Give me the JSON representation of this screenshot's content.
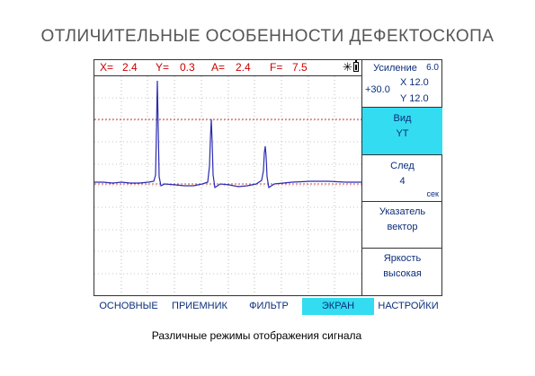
{
  "page_title": "ОТЛИЧИТЕЛЬНЫЕ ОСОБЕННОСТИ ДЕФЕКТОСКОПА",
  "readouts": {
    "x": "X=",
    "x_val": "2.4",
    "y": "Y=",
    "y_val": "0.3",
    "a": "A=",
    "a_val": "2.4",
    "f": "F=",
    "f_val": "7.5"
  },
  "icons": {
    "brightness": "sun-icon",
    "battery": "battery-icon"
  },
  "panels": {
    "gain": {
      "label": "Усиление",
      "step": "6.0",
      "value": "+30.0",
      "x": "X 12.0",
      "y": "Y 12.0"
    },
    "view": {
      "label": "Вид",
      "value": "YT"
    },
    "trace": {
      "label": "След",
      "value": "4",
      "unit": "сек"
    },
    "pointer": {
      "label": "Указатель",
      "value": "вектор"
    },
    "brightness": {
      "label": "Яркость",
      "value": "высокая"
    }
  },
  "menu": [
    "ОСНОВНЫЕ",
    "ПРИЕМНИК",
    "ФИЛЬТР",
    "ЭКРАН",
    "НАСТРОЙКИ"
  ],
  "menu_active": "ЭКРАН",
  "caption": "Различные режимы отображения сигнала",
  "colors": {
    "accent": "#33dcf0",
    "label_blue": "#0b2e7a",
    "readout_red": "#cc0000",
    "trace": "#2b2bb0",
    "gate": "#d04040"
  }
}
